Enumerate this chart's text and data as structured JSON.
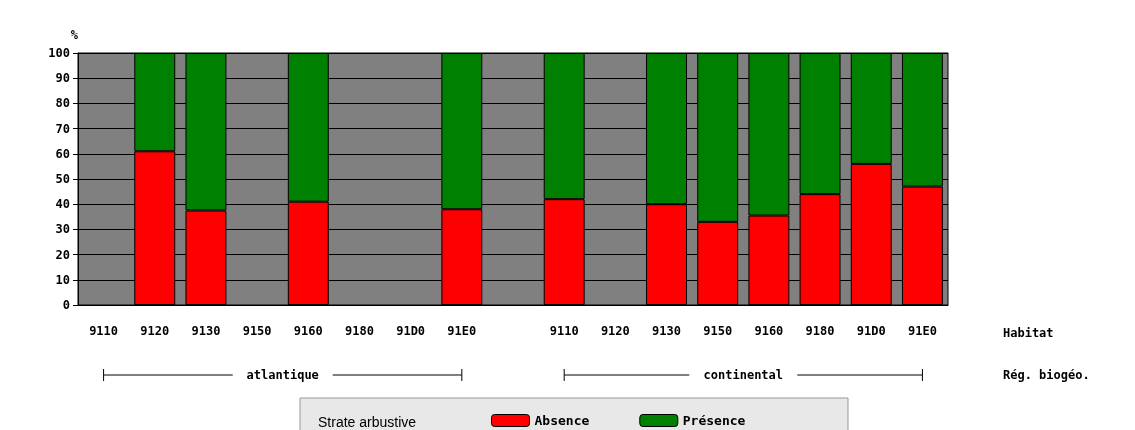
{
  "chart_data": {
    "type": "bar",
    "stacked": true,
    "ylabel": "%",
    "xlabel": "Habitat",
    "legend_title": "Strate arbustive",
    "categories": [
      "9110",
      "9120",
      "9130",
      "9150",
      "9160",
      "9180",
      "91D0",
      "91E0",
      null,
      "9110",
      "9120",
      "9130",
      "9150",
      "9160",
      "9180",
      "91D0",
      "91E0"
    ],
    "series": [
      {
        "name": "Absence",
        "color": "#ff0000",
        "values": [
          null,
          61,
          37.5,
          null,
          41,
          null,
          null,
          38,
          null,
          42,
          null,
          40,
          33,
          35.5,
          44,
          56,
          47
        ]
      },
      {
        "name": "Présence",
        "color": "#008000",
        "values": [
          null,
          39,
          62.5,
          null,
          59,
          null,
          null,
          62,
          null,
          58,
          null,
          60,
          67,
          64.5,
          56,
          44,
          53
        ]
      }
    ],
    "annotations": [
      "atlantique",
      "continental",
      "Rég. biogéo."
    ],
    "ylim": [
      0,
      100
    ],
    "yticks": [
      0,
      10,
      20,
      30,
      40,
      50,
      60,
      70,
      80,
      90,
      100
    ],
    "grid": "y",
    "legend": "bottom"
  }
}
